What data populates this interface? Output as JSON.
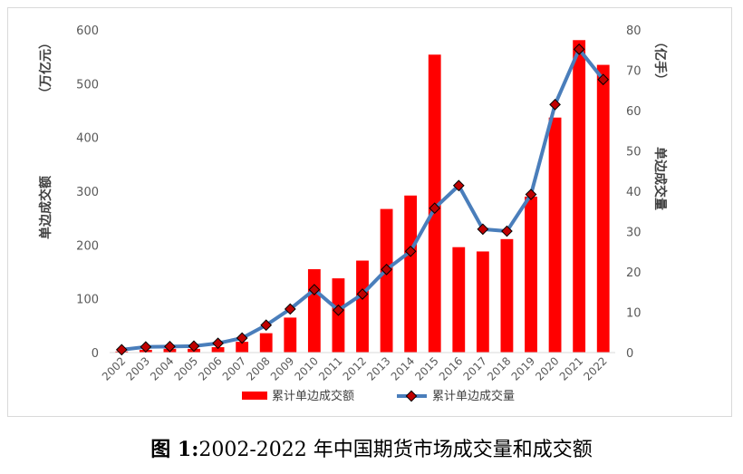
{
  "caption": {
    "figure_label": "图 1:",
    "text": "2002-2022 年中国期货市场成交量和成交额"
  },
  "colors": {
    "bar": "#ff0000",
    "line": "#4a7ebb",
    "marker": "#c00000",
    "axis_text": "#595959"
  },
  "chart_data": {
    "type": "bar+line",
    "categories": [
      "2002",
      "2003",
      "2004",
      "2005",
      "2006",
      "2007",
      "2008",
      "2009",
      "2010",
      "2011",
      "2012",
      "2013",
      "2014",
      "2015",
      "2016",
      "2017",
      "2018",
      "2019",
      "2020",
      "2021",
      "2022"
    ],
    "series": [
      {
        "name": "累计单边成交额",
        "type": "bar",
        "axis": "left",
        "values": [
          2,
          5,
          7,
          7,
          10,
          20,
          36,
          65,
          155,
          138,
          171,
          267,
          292,
          554,
          196,
          188,
          211,
          290,
          437,
          581,
          535
        ]
      },
      {
        "name": "累计单边成交量",
        "type": "line",
        "axis": "right",
        "values": [
          0.7,
          1.4,
          1.5,
          1.6,
          2.3,
          3.6,
          6.8,
          10.8,
          15.6,
          10.5,
          14.5,
          20.6,
          25.1,
          35.8,
          41.4,
          30.6,
          30.1,
          39.2,
          61.5,
          75.2,
          67.7
        ]
      }
    ],
    "y_left": {
      "label": "单边成交额",
      "unit": "（万亿元）",
      "ylim": [
        0,
        600
      ],
      "ticks": [
        0,
        100,
        200,
        300,
        400,
        500,
        600
      ]
    },
    "y_right": {
      "label": "单边成交量",
      "unit": "（亿手）",
      "ylim": [
        0,
        80
      ],
      "ticks": [
        0,
        10,
        20,
        30,
        40,
        50,
        60,
        70,
        80
      ]
    },
    "grid": false,
    "legend_position": "bottom"
  }
}
